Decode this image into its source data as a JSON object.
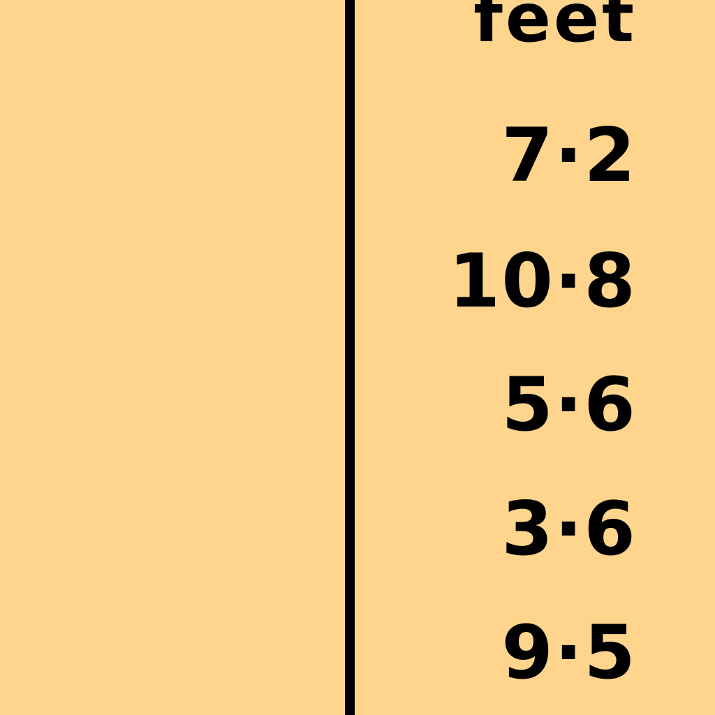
{
  "table": {
    "column_header": "feet",
    "values": [
      "7·2",
      "10·8",
      "5·6",
      "3·6",
      "9·5"
    ]
  },
  "colors": {
    "background": "#FFD58E",
    "text": "#000000",
    "rule": "#000000"
  }
}
